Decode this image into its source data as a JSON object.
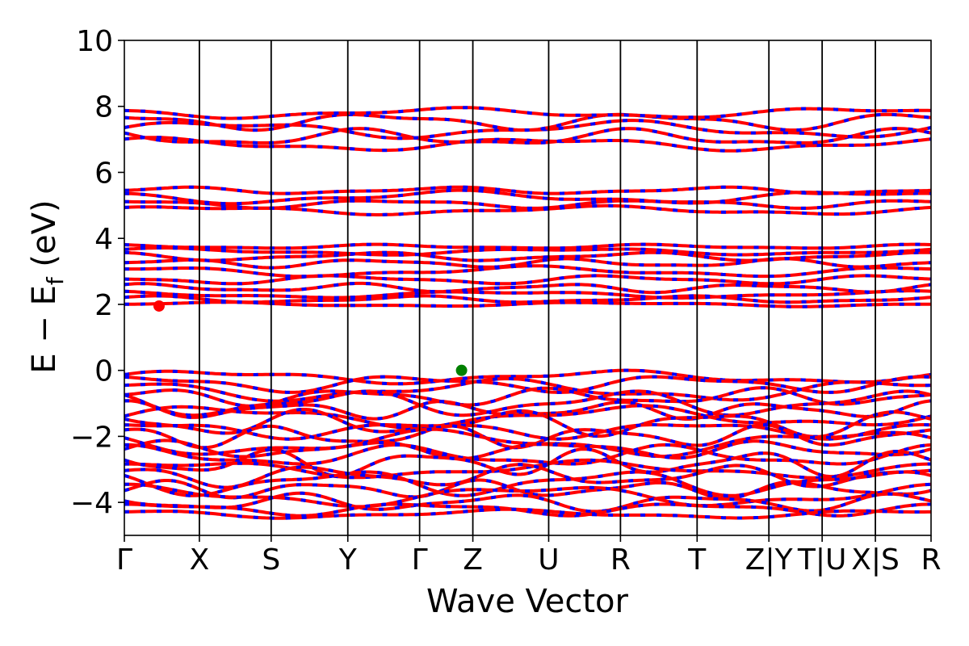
{
  "chart_data": {
    "type": "line",
    "title": "",
    "xlabel": "Wave Vector",
    "ylabel_parts": {
      "main": "E − E",
      "sub": "f",
      "unit": " (eV)"
    },
    "ylim": [
      -5,
      10
    ],
    "y_ticks": [
      10,
      8,
      6,
      4,
      2,
      0,
      -2,
      -4
    ],
    "y_tick_labels": [
      "10",
      "8",
      "6",
      "4",
      "2",
      "0",
      "−2",
      "−4"
    ],
    "kpath": {
      "labels": [
        "Γ",
        "X",
        "S",
        "Y",
        "Γ",
        "Z",
        "U",
        "R",
        "T",
        "Z|Y",
        "T|U",
        "X|S",
        "R"
      ],
      "positions": [
        0,
        0.093,
        0.182,
        0.277,
        0.366,
        0.432,
        0.526,
        0.615,
        0.71,
        0.799,
        0.865,
        0.931,
        1.0
      ],
      "segment_breaks_after": [
        8,
        9,
        10
      ]
    },
    "grid": false,
    "series_colors": {
      "dash_primary": "#ff0000",
      "dash_secondary": "#0000ff"
    },
    "vbm": {
      "k": 0.418,
      "energy": 0.0,
      "color": "#008000"
    },
    "cbm": {
      "k": 0.043,
      "energy": 1.95,
      "color": "#ff0000"
    },
    "valence_bands": [
      {
        "base": -0.2,
        "amp": 0.15,
        "freq": 2,
        "phase": 0.3
      },
      {
        "base": -0.4,
        "amp": 0.2,
        "freq": 3,
        "phase": 1.1
      },
      {
        "base": -0.6,
        "amp": 0.25,
        "freq": 2,
        "phase": 2.0
      },
      {
        "base": -0.8,
        "amp": 0.2,
        "freq": 4,
        "phase": 0.7
      },
      {
        "base": -1.0,
        "amp": 0.3,
        "freq": 3,
        "phase": 2.6
      },
      {
        "base": -1.2,
        "amp": 0.2,
        "freq": 5,
        "phase": 1.5
      },
      {
        "base": -1.4,
        "amp": 0.25,
        "freq": 2,
        "phase": 0.1
      },
      {
        "base": -1.6,
        "amp": 0.3,
        "freq": 4,
        "phase": 2.2
      },
      {
        "base": -1.8,
        "amp": 0.2,
        "freq": 3,
        "phase": 0.9
      },
      {
        "base": -2.0,
        "amp": 0.25,
        "freq": 5,
        "phase": 1.8
      },
      {
        "base": -2.2,
        "amp": 0.3,
        "freq": 2,
        "phase": 2.9
      },
      {
        "base": -2.4,
        "amp": 0.2,
        "freq": 4,
        "phase": 0.4
      },
      {
        "base": -2.6,
        "amp": 0.25,
        "freq": 3,
        "phase": 1.3
      },
      {
        "base": -2.8,
        "amp": 0.3,
        "freq": 5,
        "phase": 2.4
      },
      {
        "base": -3.0,
        "amp": 0.2,
        "freq": 2,
        "phase": 0.6
      },
      {
        "base": -3.2,
        "amp": 0.25,
        "freq": 4,
        "phase": 1.7
      },
      {
        "base": -3.4,
        "amp": 0.3,
        "freq": 3,
        "phase": 2.8
      },
      {
        "base": -3.6,
        "amp": 0.2,
        "freq": 5,
        "phase": 0.2
      },
      {
        "base": -3.8,
        "amp": 0.25,
        "freq": 2,
        "phase": 1.4
      },
      {
        "base": -4.0,
        "amp": 0.2,
        "freq": 4,
        "phase": 2.5
      },
      {
        "base": -4.2,
        "amp": 0.15,
        "freq": 3,
        "phase": 0.8
      },
      {
        "base": -4.35,
        "amp": 0.1,
        "freq": 2,
        "phase": 1.9
      }
    ],
    "conduction_bands": [
      {
        "base": 2.0,
        "amp": 0.05,
        "freq": 2,
        "phase": 0.3
      },
      {
        "base": 2.15,
        "amp": 0.08,
        "freq": 3,
        "phase": 1.1
      },
      {
        "base": 2.3,
        "amp": 0.08,
        "freq": 2,
        "phase": 2.0
      },
      {
        "base": 2.5,
        "amp": 0.1,
        "freq": 4,
        "phase": 0.7
      },
      {
        "base": 2.75,
        "amp": 0.1,
        "freq": 3,
        "phase": 2.6
      },
      {
        "base": 3.0,
        "amp": 0.12,
        "freq": 2,
        "phase": 1.5
      },
      {
        "base": 3.25,
        "amp": 0.1,
        "freq": 4,
        "phase": 0.1
      },
      {
        "base": 3.45,
        "amp": 0.1,
        "freq": 3,
        "phase": 2.2
      },
      {
        "base": 3.6,
        "amp": 0.08,
        "freq": 2,
        "phase": 0.9
      },
      {
        "base": 3.75,
        "amp": 0.05,
        "freq": 3,
        "phase": 1.8
      },
      {
        "base": 4.85,
        "amp": 0.1,
        "freq": 2,
        "phase": 0.5
      },
      {
        "base": 5.05,
        "amp": 0.1,
        "freq": 3,
        "phase": 1.6
      },
      {
        "base": 5.25,
        "amp": 0.15,
        "freq": 2,
        "phase": 2.7
      },
      {
        "base": 5.45,
        "amp": 0.08,
        "freq": 3,
        "phase": 0.4
      },
      {
        "base": 6.85,
        "amp": 0.15,
        "freq": 2,
        "phase": 1.2
      },
      {
        "base": 7.05,
        "amp": 0.2,
        "freq": 3,
        "phase": 2.3
      },
      {
        "base": 7.3,
        "amp": 0.2,
        "freq": 2,
        "phase": 0.1
      },
      {
        "base": 7.55,
        "amp": 0.2,
        "freq": 3,
        "phase": 1.9
      },
      {
        "base": 7.8,
        "amp": 0.12,
        "freq": 2,
        "phase": 2.8
      }
    ]
  }
}
